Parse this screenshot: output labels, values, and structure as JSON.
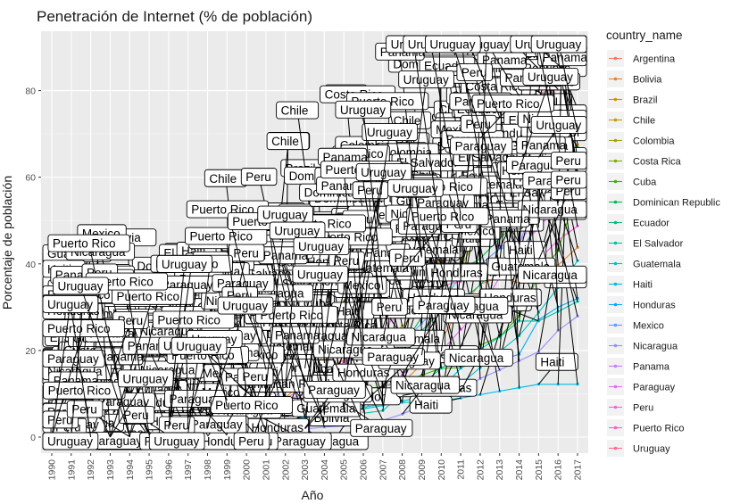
{
  "chart_data": {
    "type": "line",
    "title": "Penetración de Internet (% de población)",
    "xlabel": "Año",
    "ylabel": "Porcentaje de población",
    "xlim": [
      1990,
      2017
    ],
    "ylim": [
      0,
      90
    ],
    "yticks": [
      0,
      20,
      40,
      60,
      80
    ],
    "xticks": [
      "1990",
      "1991",
      "1992",
      "1993",
      "1994",
      "1995",
      "1996",
      "1997",
      "1998",
      "1999",
      "2000",
      "2001",
      "2002",
      "2003",
      "2004",
      "2005",
      "2006",
      "2007",
      "2008",
      "2009",
      "2010",
      "2011",
      "2012",
      "2013",
      "2014",
      "2015",
      "2016",
      "2017"
    ],
    "grid": true,
    "legend_position": "right",
    "legend_title": "country_name",
    "x": [
      1990,
      1991,
      1992,
      1993,
      1994,
      1995,
      1996,
      1997,
      1998,
      1999,
      2000,
      2001,
      2002,
      2003,
      2004,
      2005,
      2006,
      2007,
      2008,
      2009,
      2010,
      2011,
      2012,
      2013,
      2014,
      2015,
      2016,
      2017
    ],
    "series": [
      {
        "name": "Argentina",
        "color": "#F8766D",
        "values": [
          0,
          0,
          0,
          0,
          0,
          0.1,
          0.3,
          0.8,
          1.5,
          3.3,
          7.0,
          9.8,
          10.9,
          11.9,
          16.0,
          17.7,
          20.9,
          25.9,
          28.1,
          34.0,
          45.0,
          51.0,
          55.8,
          59.9,
          64.7,
          68.0,
          71.0,
          75.8
        ]
      },
      {
        "name": "Bolivia",
        "color": "#EA8331",
        "values": [
          0,
          0,
          0,
          0,
          0,
          0,
          0.1,
          0.2,
          0.4,
          0.6,
          1.4,
          2.1,
          3.1,
          3.5,
          4.4,
          5.2,
          6.2,
          10.5,
          12.5,
          16.8,
          22.4,
          30.0,
          35.3,
          36.9,
          35.6,
          35.6,
          39.7,
          43.8
        ]
      },
      {
        "name": "Brazil",
        "color": "#D89000",
        "values": [
          0,
          0,
          0,
          0,
          0,
          0.1,
          0.5,
          1.5,
          2.0,
          2.9,
          2.9,
          4.5,
          9.1,
          13.2,
          19.1,
          21.0,
          28.2,
          30.9,
          33.8,
          39.2,
          40.7,
          45.7,
          48.6,
          51.0,
          54.6,
          58.3,
          60.9,
          67.5
        ]
      },
      {
        "name": "Chile",
        "color": "#C09B00",
        "values": [
          0,
          0,
          0.1,
          0.2,
          0.3,
          0.6,
          1.2,
          2.0,
          2.8,
          4.2,
          16.6,
          19.1,
          22.1,
          25.5,
          28.2,
          31.2,
          34.5,
          35.9,
          37.3,
          41.6,
          45.0,
          52.3,
          55.1,
          58.0,
          61.1,
          76.6,
          83.6,
          82.3
        ]
      },
      {
        "name": "Colombia",
        "color": "#A3A500",
        "values": [
          0,
          0,
          0,
          0,
          0.1,
          0.1,
          0.3,
          0.5,
          1.0,
          1.5,
          2.2,
          2.9,
          4.6,
          7.4,
          9.1,
          11.0,
          15.3,
          21.8,
          25.6,
          30.0,
          36.5,
          40.4,
          49.0,
          51.7,
          52.6,
          55.9,
          58.1,
          62.3
        ]
      },
      {
        "name": "Costa Rica",
        "color": "#7CAE00",
        "values": [
          0,
          0,
          0,
          0.1,
          0.3,
          0.9,
          1.5,
          2.0,
          3.8,
          4.4,
          5.8,
          9.6,
          19.9,
          20.3,
          20.8,
          22.1,
          25.1,
          28.4,
          32.3,
          34.3,
          36.5,
          39.2,
          47.5,
          45.9,
          53.0,
          59.8,
          66.0,
          71.6
        ]
      },
      {
        "name": "Cuba",
        "color": "#39B600",
        "values": [
          0,
          0,
          0,
          0,
          0,
          0,
          0,
          0.1,
          0.2,
          0.3,
          0.5,
          1.1,
          3.8,
          4.2,
          8.4,
          9.7,
          11.2,
          11.6,
          12.9,
          14.3,
          15.9,
          16.0,
          21.2,
          23.2,
          27.9,
          37.3,
          43.0,
          57.2
        ]
      },
      {
        "name": "Dominican Republic",
        "color": "#00BB4E",
        "values": [
          0,
          0,
          0,
          0,
          0,
          0,
          0.1,
          0.3,
          0.5,
          1.0,
          3.7,
          4.4,
          6.8,
          7.9,
          8.9,
          11.5,
          14.8,
          17.7,
          20.8,
          27.7,
          31.4,
          38.6,
          41.2,
          45.9,
          49.6,
          54.2,
          61.3,
          67.0
        ]
      },
      {
        "name": "Ecuador",
        "color": "#00BF7D",
        "values": [
          0,
          0,
          0,
          0,
          0,
          0,
          0.1,
          0.1,
          0.5,
          0.8,
          1.5,
          2.7,
          4.3,
          4.5,
          4.8,
          6.0,
          7.2,
          10.8,
          18.8,
          24.6,
          29.0,
          31.4,
          35.1,
          40.4,
          43.0,
          48.9,
          54.1,
          57.3
        ]
      },
      {
        "name": "El Salvador",
        "color": "#00C1A3",
        "values": [
          0,
          0,
          0,
          0,
          0,
          0,
          0.1,
          0.1,
          0.4,
          0.6,
          1.2,
          2.4,
          1.9,
          2.5,
          3.2,
          4.2,
          5.5,
          6.1,
          10.1,
          12.1,
          15.9,
          18.9,
          20.3,
          23.1,
          26.8,
          26.8,
          29.0,
          31.3
        ]
      },
      {
        "name": "Guatemala",
        "color": "#00BFC4",
        "values": [
          0,
          0,
          0,
          0,
          0,
          0,
          0.1,
          0.2,
          0.3,
          0.6,
          0.7,
          1.7,
          3.4,
          4.5,
          5.1,
          5.7,
          6.5,
          7.3,
          8.3,
          9.3,
          10.5,
          12.3,
          16.0,
          19.7,
          23.4,
          28.8,
          34.5,
          40.7
        ]
      },
      {
        "name": "Haiti",
        "color": "#00B9E3",
        "values": [
          0,
          0,
          0,
          0,
          0,
          0,
          0,
          0,
          0.1,
          0.1,
          0.2,
          0.3,
          0.9,
          1.6,
          5.4,
          6.4,
          6.9,
          7.6,
          8.0,
          8.1,
          8.4,
          9.0,
          9.8,
          10.6,
          11.4,
          12.2,
          12.2,
          12.2
        ]
      },
      {
        "name": "Honduras",
        "color": "#00ADFA",
        "values": [
          0,
          0,
          0,
          0,
          0,
          0,
          0.1,
          0.2,
          0.4,
          0.6,
          1.2,
          1.4,
          2.6,
          4.8,
          5.6,
          6.5,
          7.8,
          9.4,
          9.6,
          9.8,
          11.1,
          15.9,
          18.1,
          17.8,
          19.1,
          27.1,
          30.0,
          32.0
        ]
      },
      {
        "name": "Mexico",
        "color": "#619CFF",
        "values": [
          0,
          0,
          0,
          0,
          0.1,
          0.2,
          0.3,
          0.6,
          1.3,
          1.9,
          5.1,
          7.0,
          11.9,
          12.9,
          14.1,
          17.2,
          19.5,
          20.8,
          21.7,
          26.3,
          31.1,
          37.2,
          39.8,
          43.5,
          44.4,
          57.4,
          59.5,
          63.9
        ]
      },
      {
        "name": "Nicaragua",
        "color": "#9590FF",
        "values": [
          0,
          0,
          0,
          0,
          0,
          0,
          0.1,
          0.2,
          0.4,
          0.6,
          1.0,
          1.5,
          1.7,
          1.9,
          2.3,
          2.6,
          2.8,
          3.9,
          5.3,
          7.3,
          10.0,
          10.6,
          13.5,
          15.5,
          17.6,
          19.7,
          24.6,
          27.9
        ]
      },
      {
        "name": "Panama",
        "color": "#C77CFF",
        "values": [
          0,
          0,
          0,
          0,
          0,
          0.1,
          0.3,
          0.9,
          1.9,
          2.9,
          6.6,
          7.3,
          8.5,
          10.0,
          11.1,
          11.5,
          17.4,
          22.3,
          33.8,
          39.1,
          40.1,
          42.7,
          45.2,
          44.0,
          44.9,
          51.2,
          54.0,
          57.9
        ]
      },
      {
        "name": "Paraguay",
        "color": "#E76BF3",
        "values": [
          0,
          0,
          0,
          0,
          0,
          0,
          0.1,
          0.1,
          0.2,
          0.4,
          0.7,
          1.1,
          1.8,
          2.1,
          3.5,
          7.9,
          7.9,
          11.2,
          14.3,
          18.9,
          19.8,
          24.8,
          29.3,
          36.9,
          43.0,
          48.4,
          53.4,
          61.1
        ]
      },
      {
        "name": "Peru",
        "color": "#FA62DB",
        "values": [
          0,
          0,
          0,
          0,
          0.1,
          0.2,
          0.4,
          0.8,
          2.0,
          3.1,
          3.1,
          7.6,
          8.9,
          11.6,
          14.1,
          17.1,
          20.7,
          25.2,
          30.6,
          31.4,
          34.8,
          36.0,
          38.2,
          39.2,
          40.2,
          40.9,
          45.5,
          48.7
        ]
      },
      {
        "name": "Puerto Rico",
        "color": "#FF62BC",
        "values": [
          0,
          0,
          0,
          0,
          0.1,
          0.5,
          1.9,
          4.4,
          6.5,
          8.5,
          10.5,
          15.6,
          17.6,
          19.7,
          22.1,
          23.4,
          25.4,
          27.9,
          38.0,
          41.5,
          45.3,
          48.0,
          69.0,
          73.9,
          78.8,
          79.5,
          80.3,
          81.9
        ]
      },
      {
        "name": "Uruguay",
        "color": "#FF6C91",
        "values": [
          0,
          0,
          0,
          0,
          0.2,
          0.6,
          1.9,
          3.0,
          4.8,
          7.0,
          10.5,
          11.1,
          11.4,
          15.9,
          17.1,
          20.1,
          29.4,
          34.0,
          39.3,
          41.8,
          46.4,
          51.4,
          55.1,
          57.7,
          61.5,
          64.6,
          66.4,
          70.3
        ]
      }
    ]
  }
}
